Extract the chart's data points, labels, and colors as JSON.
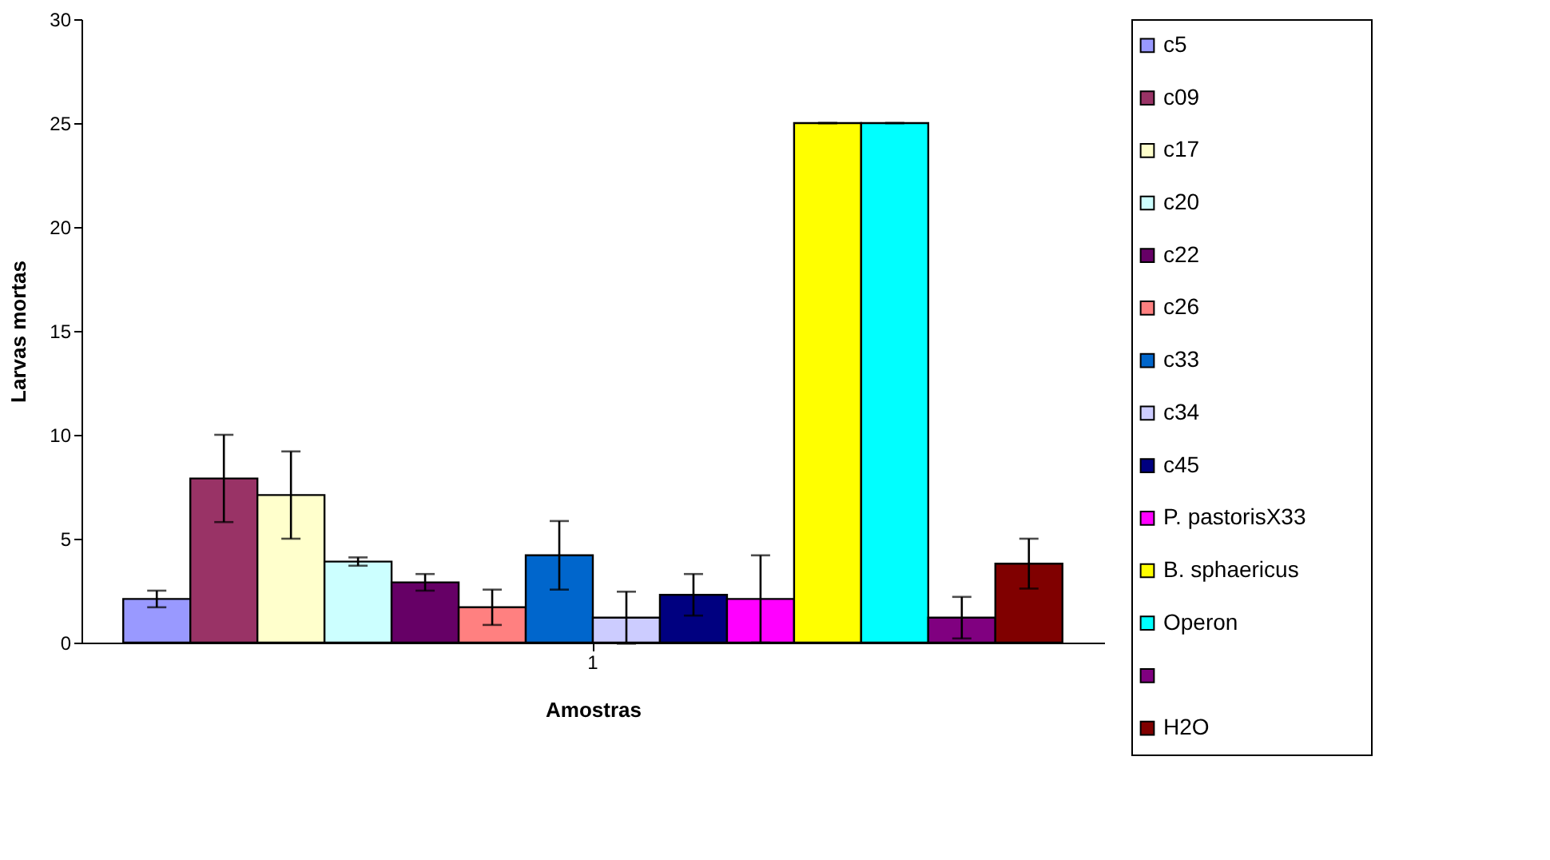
{
  "chart_data": {
    "type": "bar",
    "xlabel": "Amostras",
    "ylabel": "Larvas mortas",
    "categories": [
      "1"
    ],
    "ylim": [
      0,
      30
    ],
    "yticks": [
      0,
      5,
      10,
      15,
      20,
      25,
      30
    ],
    "legend": "right",
    "series": [
      {
        "name": "c5",
        "color": "#9999ff",
        "values": [
          2.1
        ],
        "errors": [
          0.4
        ]
      },
      {
        "name": "c09",
        "color": "#993366",
        "values": [
          7.9
        ],
        "errors": [
          2.1
        ]
      },
      {
        "name": "c17",
        "color": "#ffffcc",
        "values": [
          7.1
        ],
        "errors": [
          2.1
        ]
      },
      {
        "name": "c20",
        "color": "#ccffff",
        "values": [
          3.9
        ],
        "errors": [
          0.2
        ]
      },
      {
        "name": "c22",
        "color": "#660066",
        "values": [
          2.9
        ],
        "errors": [
          0.4
        ]
      },
      {
        "name": "c26",
        "color": "#ff8080",
        "values": [
          1.7
        ],
        "errors": [
          0.85
        ]
      },
      {
        "name": "c33",
        "color": "#0066cc",
        "values": [
          4.2
        ],
        "errors": [
          1.65
        ]
      },
      {
        "name": "c34",
        "color": "#ccccff",
        "values": [
          1.2
        ],
        "errors": [
          1.25
        ]
      },
      {
        "name": "c45",
        "color": "#000080",
        "values": [
          2.3
        ],
        "errors": [
          1.0
        ]
      },
      {
        "name": "P. pastorisX33",
        "color": "#ff00ff",
        "values": [
          2.1
        ],
        "errors": [
          2.1
        ]
      },
      {
        "name": "B. sphaericus",
        "color": "#ffff00",
        "values": [
          25
        ],
        "errors": [
          0
        ]
      },
      {
        "name": "Operon",
        "color": "#00ffff",
        "values": [
          25
        ],
        "errors": [
          0
        ]
      },
      {
        "color": "#800080",
        "values": [
          1.2
        ],
        "errors": [
          1.0
        ]
      },
      {
        "name": "H2O",
        "color": "#800000",
        "values": [
          3.8
        ],
        "errors": [
          1.2
        ]
      }
    ]
  }
}
